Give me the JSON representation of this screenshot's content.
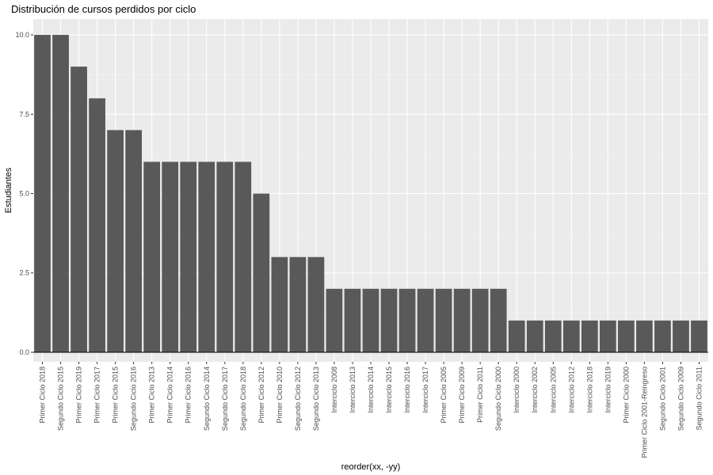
{
  "chart_data": {
    "type": "bar",
    "title": "Distribución de cursos perdidos por ciclo",
    "xlabel": "reorder(xx, -yy)",
    "ylabel": "Estudiantes",
    "ylim": [
      -0.3,
      10.5
    ],
    "yticks": [
      0,
      2.5,
      5,
      7.5,
      10
    ],
    "ytick_labels": [
      "0.0",
      "2.5",
      "5.0",
      "7.5",
      "10.0"
    ],
    "grid": true,
    "legend": "none",
    "categories": [
      "Primer Ciclo 2018",
      "Segundo Ciclo 2015",
      "Primer Ciclo 2019",
      "Primer Ciclo 2017",
      "Primer Ciclo 2015",
      "Segundo Ciclo 2016",
      "Primer Ciclo 2013",
      "Primer Ciclo 2014",
      "Primer Ciclo 2016",
      "Segundo Ciclo 2014",
      "Segundo Ciclo 2017",
      "Segundo Ciclo 2018",
      "Primer Ciclo 2012",
      "Primer Ciclo 2010",
      "Segundo Ciclo 2012",
      "Segundo Ciclo 2013",
      "Interciclo 2008",
      "Interciclo 2013",
      "Interciclo 2014",
      "Interciclo 2015",
      "Interciclo 2016",
      "Interciclo 2017",
      "Primer Ciclo 2005",
      "Primer Ciclo 2009",
      "Primer Ciclo 2011",
      "Segundo Ciclo 2000",
      "Interciclo 2000",
      "Interciclo 2002",
      "Interciclo 2005",
      "Interciclo 2012",
      "Interciclo 2018",
      "Interciclo 2019",
      "Primer Ciclo 2000",
      "Primer Ciclo 2001-Reingreso",
      "Segundo Ciclo 2001",
      "Segundo Ciclo 2009",
      "Segundo Ciclo 2011"
    ],
    "values": [
      10,
      10,
      9,
      8,
      7,
      7,
      6,
      6,
      6,
      6,
      6,
      6,
      5,
      3,
      3,
      3,
      2,
      2,
      2,
      2,
      2,
      2,
      2,
      2,
      2,
      2,
      1,
      1,
      1,
      1,
      1,
      1,
      1,
      1,
      1,
      1,
      1
    ],
    "colors": {
      "bar": "#595959",
      "panel": "#ebebeb",
      "grid_major": "#ffffff",
      "grid_minor": "#f4f4f4",
      "tick_text": "#4d4d4d",
      "axis_title": "#000000",
      "baseline": "#000000"
    }
  }
}
